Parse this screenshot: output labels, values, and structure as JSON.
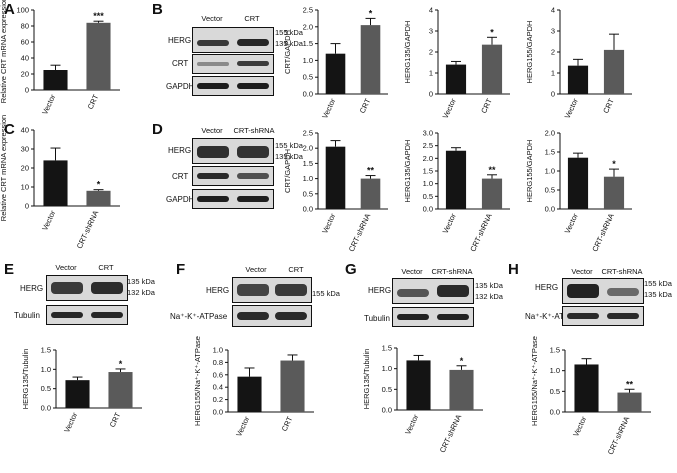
{
  "panels": [
    {
      "id": "A",
      "label": "A"
    },
    {
      "id": "B",
      "label": "B"
    },
    {
      "id": "C",
      "label": "C"
    },
    {
      "id": "D",
      "label": "D"
    },
    {
      "id": "E",
      "label": "E"
    },
    {
      "id": "F",
      "label": "F"
    },
    {
      "id": "G",
      "label": "G"
    },
    {
      "id": "H",
      "label": "H"
    }
  ],
  "blots": {
    "B": {
      "lanes": [
        "Vector",
        "CRT"
      ],
      "rows": [
        "HERG",
        "CRT",
        "GAPDH"
      ],
      "kda": [
        "155 kDa",
        "135 kDa"
      ]
    },
    "D": {
      "lanes": [
        "Vector",
        "CRT-shRNA"
      ],
      "rows": [
        "HERG",
        "CRT",
        "GAPDH"
      ],
      "kda": [
        "155 kDa",
        "135 kDa"
      ]
    },
    "E": {
      "lanes": [
        "Vector",
        "CRT"
      ],
      "rows": [
        "HERG",
        "Tubulin"
      ],
      "kda": [
        "135 kDa",
        "132 kDa"
      ]
    },
    "F": {
      "lanes": [
        "Vector",
        "CRT"
      ],
      "rows": [
        "HERG",
        "Na⁺-K⁺-ATPase"
      ],
      "kda": [
        "155 kDa"
      ]
    },
    "G": {
      "lanes": [
        "Vector",
        "CRT-shRNA"
      ],
      "rows": [
        "HERG",
        "Tubulin"
      ],
      "kda": [
        "135 kDa",
        "132 kDa"
      ]
    },
    "H": {
      "lanes": [
        "Vector",
        "CRT-shRNA"
      ],
      "rows": [
        "HERG",
        "Na⁺-K⁺-ATPase"
      ],
      "kda": [
        "155 kDa",
        "135 kDa"
      ]
    }
  },
  "chart_data": [
    {
      "id": "A",
      "type": "bar",
      "categories": [
        "Vector",
        "CRT"
      ],
      "values": [
        25,
        84
      ],
      "errors": [
        6,
        2
      ],
      "ylabel": "Relative CRT mRNA expression",
      "ylim": [
        0,
        100
      ],
      "yticks": [
        0,
        20,
        40,
        60,
        80,
        100
      ],
      "sig": [
        "",
        "***"
      ],
      "colors": [
        "#141414",
        "#5a5a5a"
      ]
    },
    {
      "id": "B1",
      "type": "bar",
      "categories": [
        "Vector",
        "CRT"
      ],
      "values": [
        1.2,
        2.05
      ],
      "errors": [
        0.3,
        0.2
      ],
      "ylabel": "CRT/GAPDH",
      "ylim": [
        0,
        2.5
      ],
      "yticks": [
        0,
        0.5,
        1.0,
        1.5,
        2.0,
        2.5
      ],
      "sig": [
        "",
        "*"
      ],
      "colors": [
        "#141414",
        "#5a5a5a"
      ]
    },
    {
      "id": "B2",
      "type": "bar",
      "categories": [
        "Vector",
        "CRT"
      ],
      "values": [
        1.4,
        2.35
      ],
      "errors": [
        0.15,
        0.35
      ],
      "ylabel": "HERG135/GAPDH",
      "ylim": [
        0,
        4
      ],
      "yticks": [
        0,
        1,
        2,
        3,
        4
      ],
      "sig": [
        "",
        "*"
      ],
      "colors": [
        "#141414",
        "#5a5a5a"
      ]
    },
    {
      "id": "B3",
      "type": "bar",
      "categories": [
        "Vector",
        "CRT"
      ],
      "values": [
        1.35,
        2.1
      ],
      "errors": [
        0.3,
        0.75
      ],
      "ylabel": "HERG155/GAPDH",
      "ylim": [
        0,
        4
      ],
      "yticks": [
        0,
        1,
        2,
        3,
        4
      ],
      "sig": [
        "",
        ""
      ],
      "colors": [
        "#141414",
        "#5a5a5a"
      ]
    },
    {
      "id": "C",
      "type": "bar",
      "categories": [
        "Vector",
        "CRT-shRNA"
      ],
      "values": [
        24,
        8
      ],
      "errors": [
        6.5,
        0.6
      ],
      "ylabel": "Relative CRT mRNA expression",
      "ylim": [
        0,
        40
      ],
      "yticks": [
        0,
        10,
        20,
        30,
        40
      ],
      "sig": [
        "",
        "*"
      ],
      "colors": [
        "#141414",
        "#5a5a5a"
      ]
    },
    {
      "id": "D1",
      "type": "bar",
      "categories": [
        "Vector",
        "CRT-shRNA"
      ],
      "values": [
        2.05,
        1.0
      ],
      "errors": [
        0.2,
        0.1
      ],
      "ylabel": "CRT/GAPDH",
      "ylim": [
        0,
        2.5
      ],
      "yticks": [
        0,
        0.5,
        1.0,
        1.5,
        2.0,
        2.5
      ],
      "sig": [
        "",
        "**"
      ],
      "colors": [
        "#141414",
        "#5a5a5a"
      ]
    },
    {
      "id": "D2",
      "type": "bar",
      "categories": [
        "Vector",
        "CRT-shRNA"
      ],
      "values": [
        2.3,
        1.2
      ],
      "errors": [
        0.12,
        0.15
      ],
      "ylabel": "HERG135/GAPDH",
      "ylim": [
        0,
        3
      ],
      "yticks": [
        0,
        0.5,
        1.0,
        1.5,
        2.0,
        2.5,
        3.0
      ],
      "sig": [
        "",
        "**"
      ],
      "colors": [
        "#141414",
        "#5a5a5a"
      ]
    },
    {
      "id": "D3",
      "type": "bar",
      "categories": [
        "Vector",
        "CRT-shRNA"
      ],
      "values": [
        1.35,
        0.85
      ],
      "errors": [
        0.12,
        0.2
      ],
      "ylabel": "HERG155/GAPDH",
      "ylim": [
        0,
        2
      ],
      "yticks": [
        0,
        0.5,
        1.0,
        1.5,
        2.0
      ],
      "sig": [
        "",
        "*"
      ],
      "colors": [
        "#141414",
        "#5a5a5a"
      ]
    },
    {
      "id": "E",
      "type": "bar",
      "categories": [
        "Vector",
        "CRT"
      ],
      "values": [
        0.72,
        0.93
      ],
      "errors": [
        0.08,
        0.08
      ],
      "ylabel": "HERG135/Tubulin",
      "ylim": [
        0,
        1.5
      ],
      "yticks": [
        0,
        0.5,
        1.0,
        1.5
      ],
      "sig": [
        "",
        "*"
      ],
      "colors": [
        "#141414",
        "#5a5a5a"
      ]
    },
    {
      "id": "F",
      "type": "bar",
      "categories": [
        "Vector",
        "CRT"
      ],
      "values": [
        0.57,
        0.83
      ],
      "errors": [
        0.14,
        0.09
      ],
      "ylabel": "HERG155/Na⁺-K⁺-ATPase",
      "ylim": [
        0,
        1.0
      ],
      "yticks": [
        0,
        0.2,
        0.4,
        0.6,
        0.8,
        1.0
      ],
      "sig": [
        "",
        ""
      ],
      "colors": [
        "#141414",
        "#5a5a5a"
      ]
    },
    {
      "id": "G",
      "type": "bar",
      "categories": [
        "Vector",
        "CRT-shRNA"
      ],
      "values": [
        1.2,
        0.97
      ],
      "errors": [
        0.12,
        0.1
      ],
      "ylabel": "HERG135/Tubulin",
      "ylim": [
        0,
        1.5
      ],
      "yticks": [
        0,
        0.5,
        1.0,
        1.5
      ],
      "sig": [
        "",
        "*"
      ],
      "colors": [
        "#141414",
        "#5a5a5a"
      ]
    },
    {
      "id": "H",
      "type": "bar",
      "categories": [
        "Vector",
        "CRT-shRNA"
      ],
      "values": [
        1.15,
        0.47
      ],
      "errors": [
        0.14,
        0.08
      ],
      "ylabel": "HERG155/Na⁺-K⁺-ATPase",
      "ylim": [
        0,
        1.5
      ],
      "yticks": [
        0,
        0.5,
        1.0,
        1.5
      ],
      "sig": [
        "",
        "**"
      ],
      "colors": [
        "#141414",
        "#5a5a5a"
      ]
    }
  ]
}
